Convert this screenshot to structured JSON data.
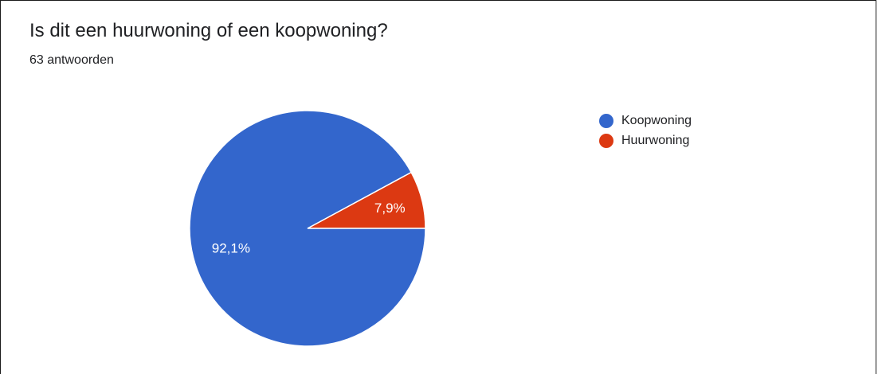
{
  "chart_data": {
    "type": "pie",
    "title": "Is dit een huurwoning of een koopwoning?",
    "subtitle": "63 antwoorden",
    "slices": [
      {
        "name": "Koopwoning",
        "value": 92.1,
        "label": "92,1%",
        "color": "#3366cc"
      },
      {
        "name": "Huurwoning",
        "value": 7.9,
        "label": "7,9%",
        "color": "#dc3912"
      }
    ],
    "legend": {
      "position": "right"
    }
  }
}
